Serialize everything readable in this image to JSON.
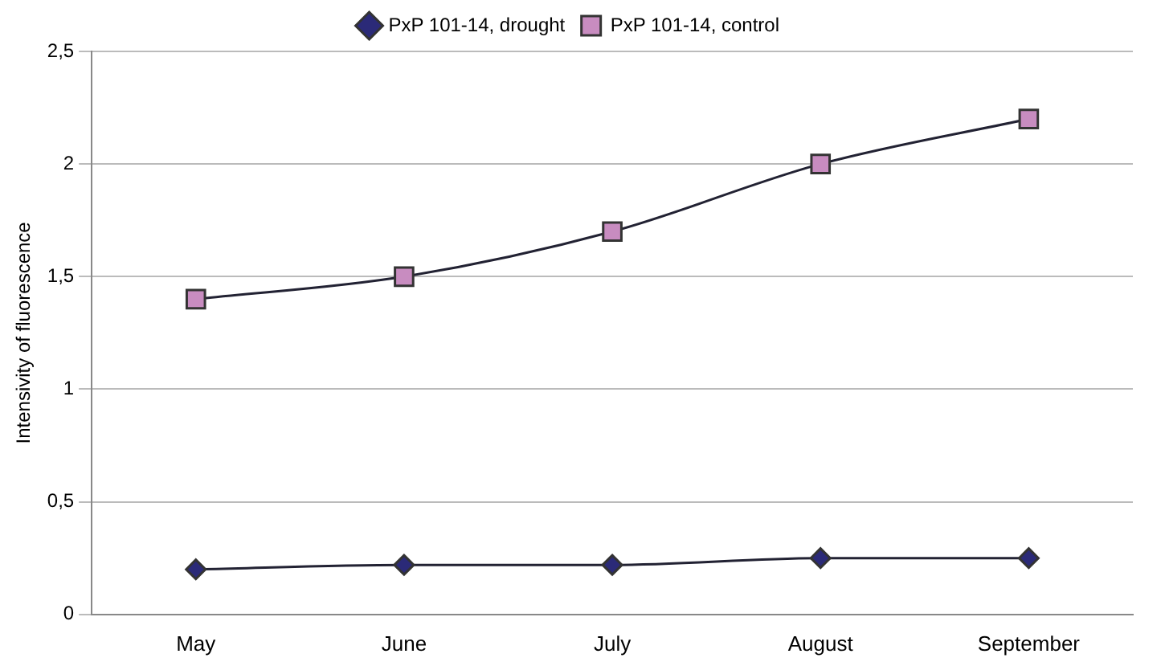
{
  "chart_data": {
    "type": "line",
    "ylabel": "Intensivity of fluorescence",
    "categories": [
      "May",
      "June",
      "July",
      "August",
      "September"
    ],
    "series": [
      {
        "name": "PxP 101-14, drought",
        "color": "#2b2a78",
        "marker": "diamond",
        "values": [
          0.2,
          0.22,
          0.22,
          0.25,
          0.25
        ]
      },
      {
        "name": "PxP 101-14, control",
        "color": "#c88cc0",
        "marker": "square",
        "values": [
          1.4,
          1.5,
          1.7,
          2.0,
          2.2
        ]
      }
    ],
    "ylim": [
      0,
      2.5
    ],
    "yticks": [
      0,
      {
        "value": 0.5,
        "label": "0,5"
      },
      1,
      {
        "value": 1.5,
        "label": "1,5"
      },
      2,
      {
        "value": 2.5,
        "label": "2,5"
      }
    ],
    "grid": "y",
    "legend": "top",
    "line_style": "solid"
  }
}
